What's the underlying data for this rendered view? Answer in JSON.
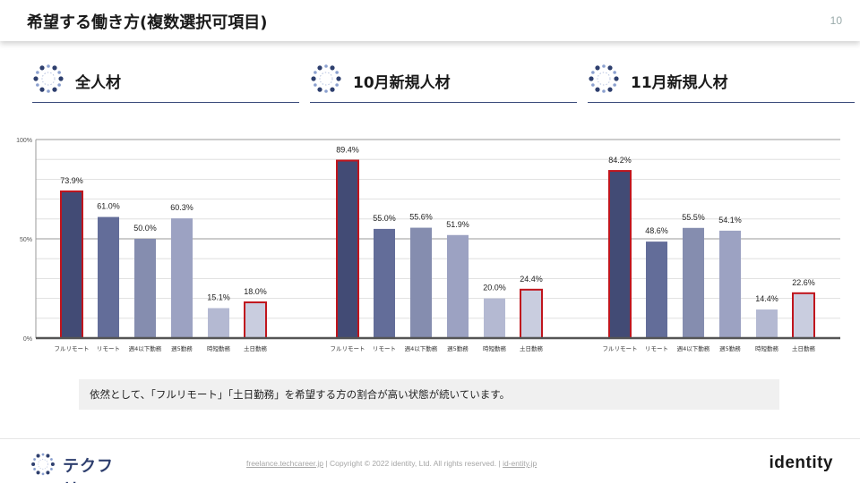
{
  "header": {
    "title": "希望する働き方(複数選択可項目)",
    "page_number": "10"
  },
  "sections": [
    {
      "label": "全人材"
    },
    {
      "label": "10月新規人材"
    },
    {
      "label": "11月新規人材"
    }
  ],
  "chart_data": {
    "type": "bar",
    "title": "希望する働き方(複数選択可項目)",
    "ylim": [
      0,
      100
    ],
    "yticks": [
      0,
      50,
      100
    ],
    "ytick_labels": [
      "0%",
      "50%",
      "100%"
    ],
    "categories": [
      "フルリモート",
      "リモート",
      "週4以下勤務",
      "週5勤務",
      "時短勤務",
      "土日勤務"
    ],
    "highlighted_categories": [
      "フルリモート",
      "土日勤務"
    ],
    "bar_colors": [
      "#424b75",
      "#636d99",
      "#858daf",
      "#9ca2c2",
      "#b4b9d2",
      "#c9cddf"
    ],
    "highlight_color": "#c0151d",
    "series": [
      {
        "name": "全人材",
        "values": [
          73.9,
          61.0,
          50.0,
          60.3,
          15.1,
          18.0
        ],
        "labels": [
          "73.9%",
          "61.0%",
          "50.0%",
          "60.3%",
          "15.1%",
          "18.0%"
        ]
      },
      {
        "name": "10月新規人材",
        "values": [
          89.4,
          55.0,
          55.6,
          51.9,
          20.0,
          24.4
        ],
        "labels": [
          "89.4%",
          "55.0%",
          "55.6%",
          "51.9%",
          "20.0%",
          "24.4%"
        ]
      },
      {
        "name": "11月新規人材",
        "values": [
          84.2,
          48.6,
          55.5,
          54.1,
          14.4,
          22.6
        ],
        "labels": [
          "84.2%",
          "48.6%",
          "55.5%",
          "54.1%",
          "14.4%",
          "22.6%"
        ]
      }
    ]
  },
  "note": {
    "text": "依然として、「フルリモート」「土日勤務」を希望する方の割合が高い状態が続いています。"
  },
  "footer": {
    "logo_text": "テクフリ",
    "link1": "freelance.techcareer.jp",
    "separator": "|",
    "copyright": "Copyright © 2022 identity, Ltd. All rights reserved.",
    "link2": "id-entity.jp",
    "brand": "identity"
  }
}
